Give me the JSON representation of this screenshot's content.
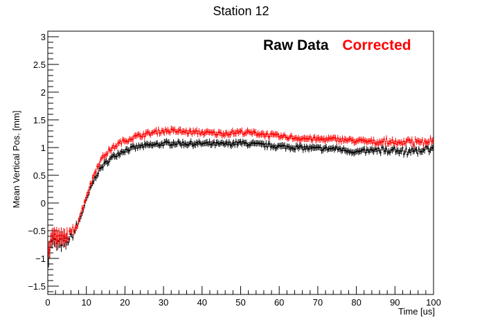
{
  "chart_data": {
    "type": "scatter",
    "title": "Station 12",
    "xlabel": "Time [us]",
    "ylabel": "Mean Vertical Pos. [mm]",
    "xlim": [
      0,
      100
    ],
    "ylim": [
      -1.65,
      3.1
    ],
    "xticks": [
      0,
      10,
      20,
      30,
      40,
      50,
      60,
      70,
      80,
      90,
      100
    ],
    "yticks": [
      -1.5,
      -1,
      -0.5,
      0,
      0.5,
      1,
      1.5,
      2,
      2.5,
      3
    ],
    "ytick_labels": [
      "−1.5",
      "−1",
      "−0.5",
      "0",
      "0.5",
      "1",
      "1.5",
      "2",
      "2.5",
      "3"
    ],
    "grid": false,
    "legend_position": "top-right",
    "series": [
      {
        "name": "Raw Data",
        "color": "#000000",
        "x": [
          0,
          1,
          2,
          3,
          4,
          5,
          6,
          7,
          8,
          9,
          10,
          11,
          12,
          13,
          14,
          15,
          16,
          17,
          18,
          19,
          20,
          22,
          24,
          26,
          28,
          30,
          33,
          36,
          40,
          45,
          50,
          55,
          60,
          65,
          70,
          75,
          80,
          85,
          90,
          95,
          100
        ],
        "y": [
          -1.0,
          -0.65,
          -0.7,
          -0.72,
          -0.7,
          -0.68,
          -0.62,
          -0.5,
          -0.35,
          -0.15,
          0.05,
          0.25,
          0.42,
          0.55,
          0.65,
          0.72,
          0.78,
          0.84,
          0.88,
          0.92,
          0.95,
          0.99,
          1.02,
          1.04,
          1.05,
          1.07,
          1.08,
          1.07,
          1.07,
          1.06,
          1.08,
          1.05,
          1.02,
          1.0,
          0.98,
          0.98,
          0.92,
          0.95,
          0.95,
          0.93,
          1.0
        ]
      },
      {
        "name": "Corrected",
        "color": "#ff0000",
        "x": [
          0,
          1,
          2,
          3,
          4,
          5,
          6,
          7,
          8,
          9,
          10,
          11,
          12,
          13,
          14,
          15,
          16,
          17,
          18,
          19,
          20,
          22,
          24,
          26,
          28,
          30,
          33,
          36,
          40,
          45,
          50,
          55,
          60,
          65,
          70,
          75,
          80,
          85,
          90,
          95,
          100
        ],
        "y": [
          -0.95,
          -0.6,
          -0.62,
          -0.65,
          -0.64,
          -0.6,
          -0.55,
          -0.45,
          -0.3,
          -0.1,
          0.12,
          0.32,
          0.52,
          0.68,
          0.8,
          0.88,
          0.95,
          1.0,
          1.05,
          1.1,
          1.12,
          1.18,
          1.22,
          1.25,
          1.28,
          1.3,
          1.3,
          1.28,
          1.27,
          1.25,
          1.28,
          1.25,
          1.2,
          1.17,
          1.15,
          1.15,
          1.12,
          1.1,
          1.1,
          1.08,
          1.15
        ]
      }
    ]
  }
}
